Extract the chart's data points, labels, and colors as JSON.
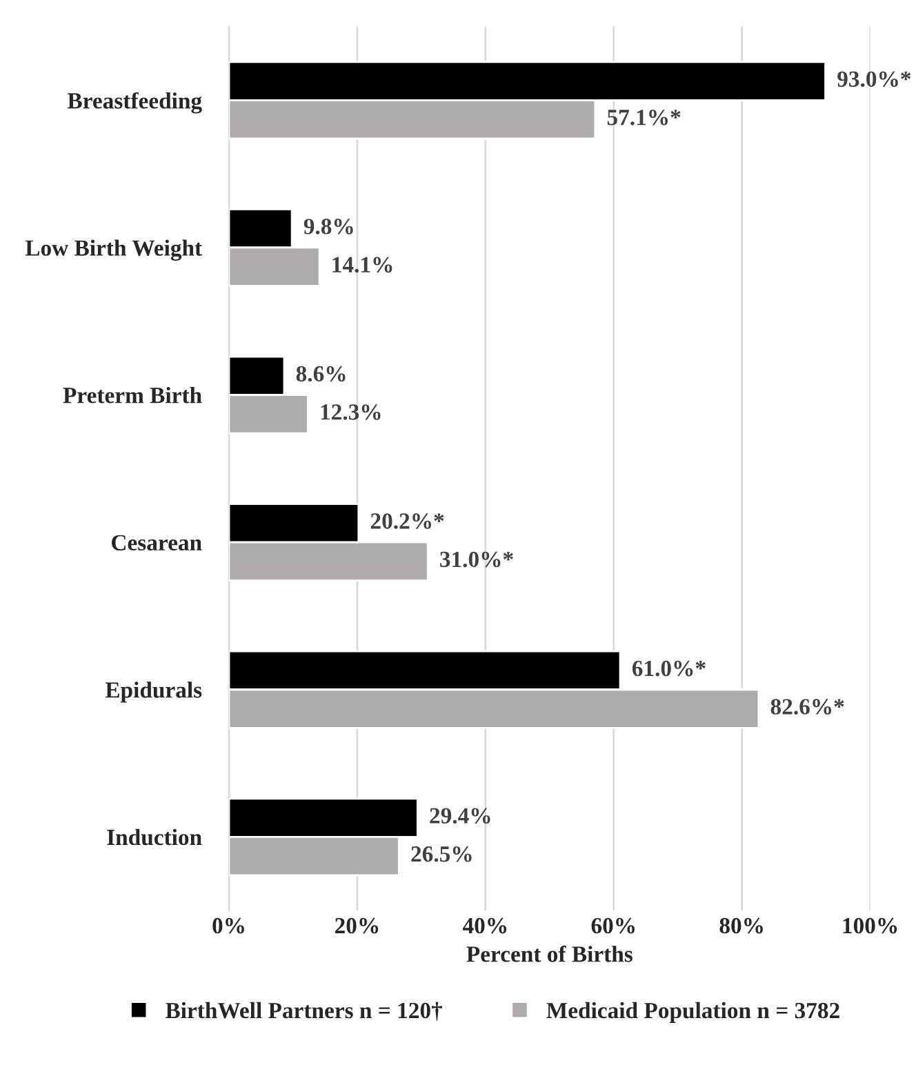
{
  "chart_data": {
    "type": "bar",
    "orientation": "horizontal",
    "xlabel": "Percent of Births",
    "categories": [
      "Breastfeeding",
      "Low Birth Weight",
      "Preterm Birth",
      "Cesarean",
      "Epidurals",
      "Induction"
    ],
    "series": [
      {
        "name": "BirthWell Partners n = 120†",
        "color": "#000000",
        "values": [
          93.0,
          9.8,
          8.6,
          20.2,
          61.0,
          29.4
        ],
        "value_labels": [
          "93.0%*",
          "9.8%",
          "8.6%",
          "20.2%*",
          "61.0%*",
          "29.4%"
        ]
      },
      {
        "name": "Medicaid Population n = 3782",
        "color": "#afabab",
        "values": [
          57.1,
          14.1,
          12.3,
          31.0,
          82.6,
          26.5
        ],
        "value_labels": [
          "57.1%*",
          "14.1%",
          "12.3%",
          "31.0%*",
          "82.6%*",
          "26.5%"
        ]
      }
    ],
    "xlim": [
      0,
      100
    ],
    "xticks": [
      {
        "value": 0,
        "label": "0%"
      },
      {
        "value": 20,
        "label": "20%"
      },
      {
        "value": 40,
        "label": "40%"
      },
      {
        "value": 60,
        "label": "60%"
      },
      {
        "value": 80,
        "label": "80%"
      },
      {
        "value": 100,
        "label": "100%"
      }
    ],
    "grid": "x",
    "legend": "bottom"
  }
}
